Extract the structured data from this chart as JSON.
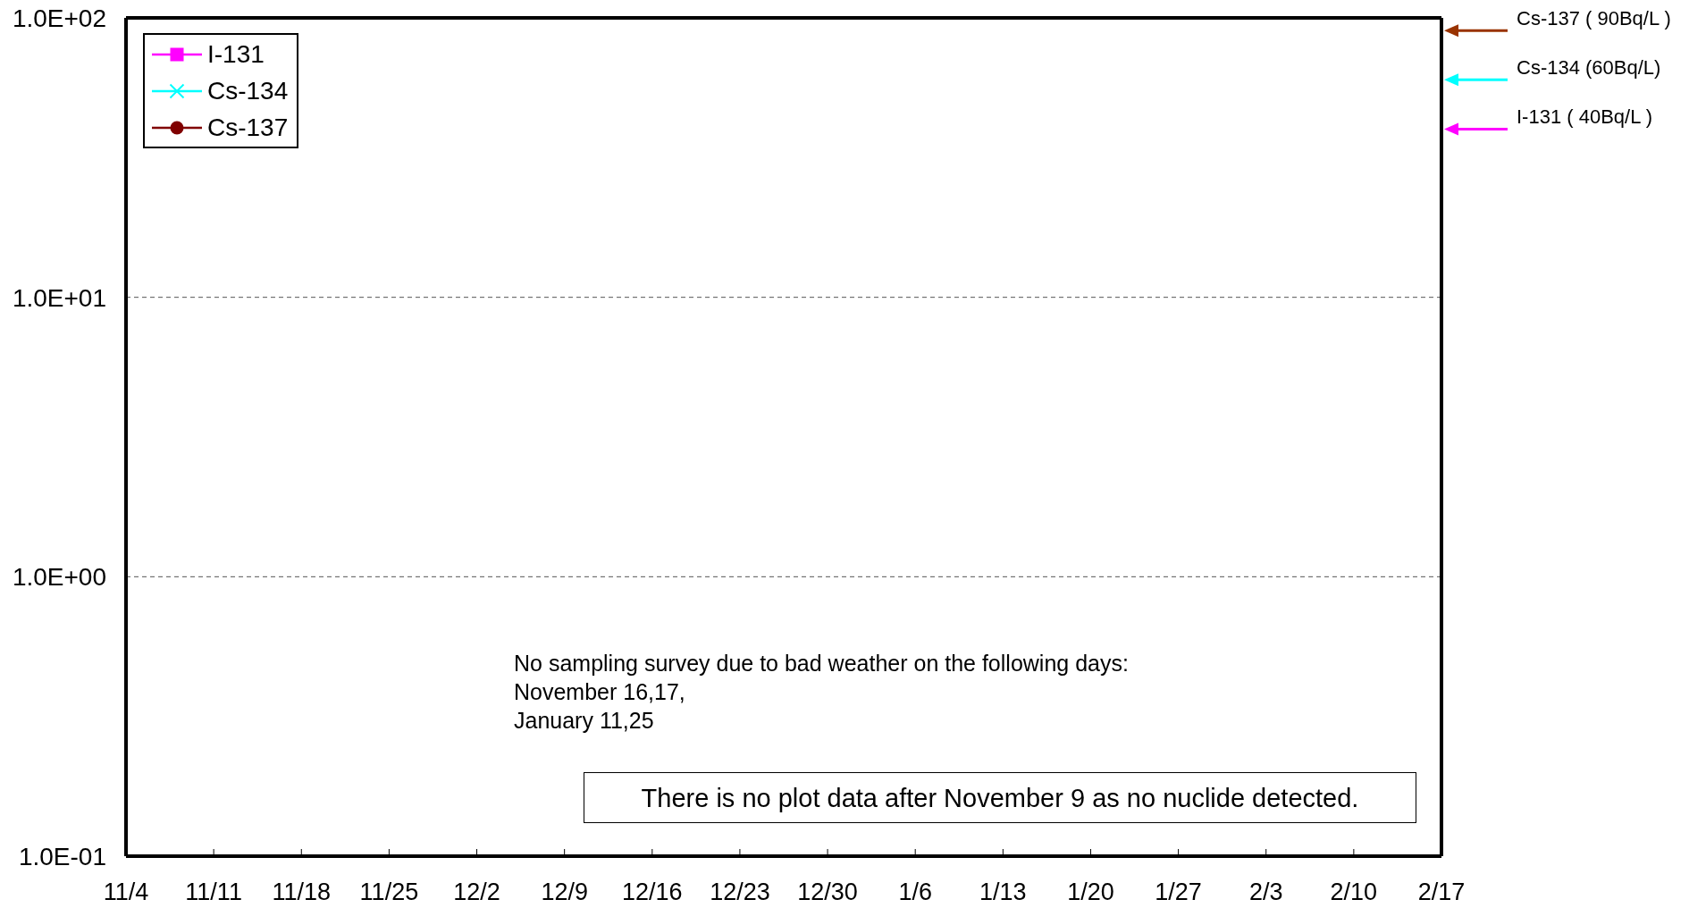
{
  "chart_data": {
    "type": "line",
    "categories": [
      "11/4",
      "11/11",
      "11/18",
      "11/25",
      "12/2",
      "12/9",
      "12/16",
      "12/23",
      "12/30",
      "1/6",
      "1/13",
      "1/20",
      "1/27",
      "2/3",
      "2/10",
      "2/17"
    ],
    "ylim": [
      0.1,
      100
    ],
    "yticks": [
      {
        "value": 0.1,
        "label": "1.0E-01"
      },
      {
        "value": 1,
        "label": "1.0E+00"
      },
      {
        "value": 10,
        "label": "1.0E+01"
      },
      {
        "value": 100,
        "label": "1.0E+02"
      }
    ],
    "log": true,
    "grid": "y",
    "legend": "top left",
    "series": [
      {
        "name": "I-131",
        "color": "#ff00ff",
        "marker": "square",
        "values": [
          null,
          null,
          null,
          null,
          null,
          null,
          null,
          null,
          null,
          null,
          null,
          null,
          null,
          null,
          null,
          null
        ]
      },
      {
        "name": "Cs-134",
        "color": "#00ffff",
        "marker": "cross",
        "values": [
          null,
          null,
          null,
          null,
          null,
          null,
          null,
          null,
          null,
          null,
          null,
          null,
          null,
          null,
          null,
          null
        ]
      },
      {
        "name": "Cs-137",
        "color": "#800000",
        "marker": "circle",
        "values": [
          null,
          null,
          null,
          null,
          null,
          null,
          null,
          null,
          null,
          null,
          null,
          null,
          null,
          null,
          null,
          null
        ]
      }
    ],
    "ref_lines": [
      {
        "axis": "y",
        "value": 90,
        "label": "Cs-137 ( 90Bq/L )",
        "color": "#993300"
      },
      {
        "axis": "y",
        "value": 60,
        "label": "Cs-134 (60Bq/L)",
        "color": "#00ffff"
      },
      {
        "axis": "y",
        "value": 40,
        "label": "I-131 ( 40Bq/L )",
        "color": "#ff00ff"
      }
    ],
    "annotations": [
      "No sampling survey due to bad weather on the following days:\nNovember 16,17,\nJanuary 11,25",
      "There is no plot data after November 9 as no nuclide detected."
    ]
  }
}
